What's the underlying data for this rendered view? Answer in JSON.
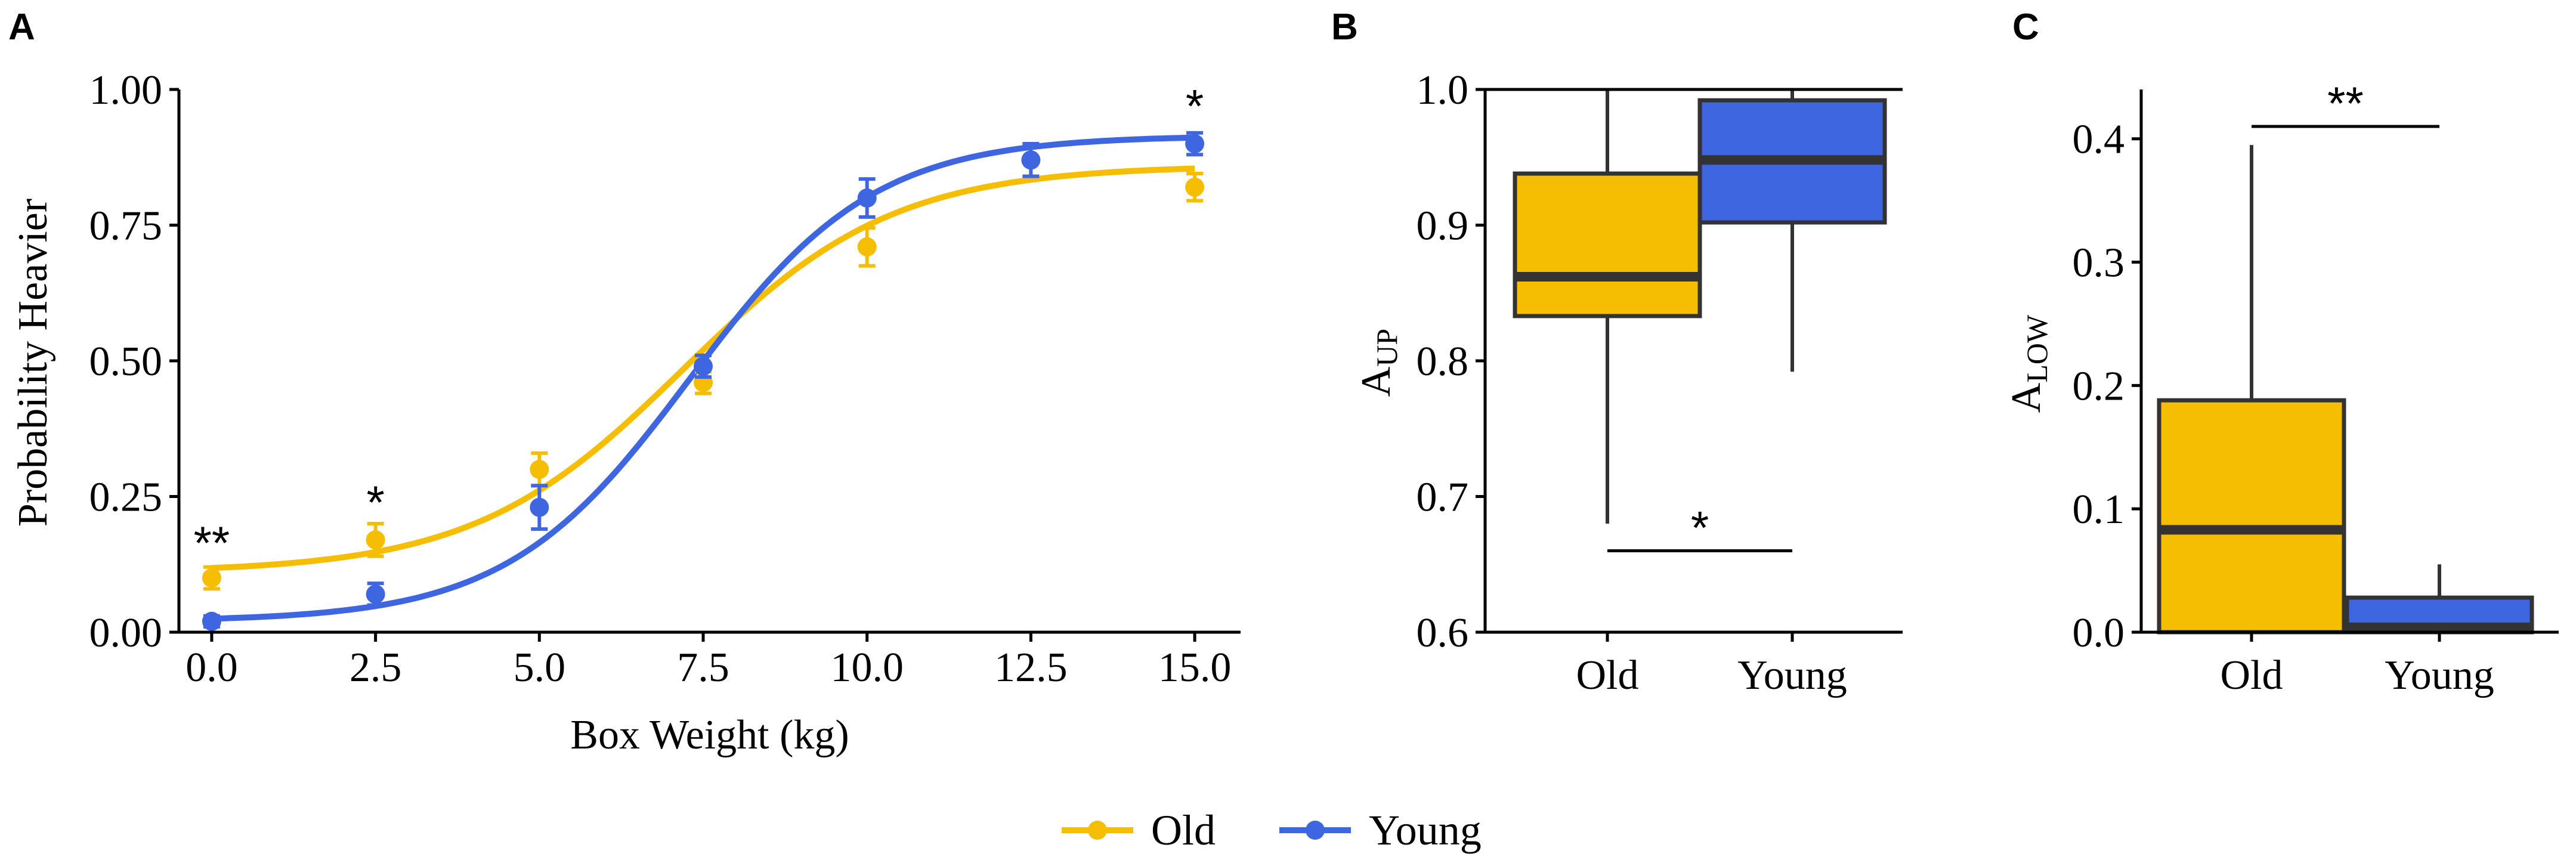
{
  "colors": {
    "old": "#F5BE02",
    "young": "#3F66E1",
    "axis": "#000000",
    "box_edge": "#333333"
  },
  "panel_labels": [
    "A",
    "B",
    "C"
  ],
  "legend": {
    "entries": [
      {
        "name": "Old",
        "color": "#F5BE02"
      },
      {
        "name": "Young",
        "color": "#3F66E1"
      }
    ]
  },
  "chart_data": [
    {
      "panel": "A",
      "type": "scatter",
      "xlabel": "Box Weight (kg)",
      "ylabel": "Probability Heavier",
      "xlim": [
        -0.5,
        15.7
      ],
      "ylim": [
        0,
        1.0
      ],
      "xticks": [
        "0.0",
        "2.5",
        "5.0",
        "7.5",
        "10.0",
        "12.5",
        "15.0"
      ],
      "xtick_values": [
        0,
        2.5,
        5,
        7.5,
        10,
        12.5,
        15
      ],
      "yticks": [
        "0.00",
        "0.25",
        "0.50",
        "0.75",
        "1.00"
      ],
      "ytick_values": [
        0,
        0.25,
        0.5,
        0.75,
        1.0
      ],
      "x": [
        0,
        2.5,
        5,
        7.5,
        10,
        12.5,
        15
      ],
      "series": [
        {
          "name": "Old",
          "values": [
            0.1,
            0.17,
            0.3,
            0.46,
            0.71,
            0.87,
            0.82
          ],
          "err": [
            0.02,
            0.03,
            0.03,
            0.02,
            0.035,
            0.03,
            0.025
          ],
          "fit": {
            "low": 0.11,
            "high": 0.86,
            "mid": 7.2,
            "scale": 1.6
          }
        },
        {
          "name": "Young",
          "values": [
            0.02,
            0.07,
            0.23,
            0.49,
            0.8,
            0.87,
            0.9
          ],
          "err": [
            0.01,
            0.02,
            0.04,
            0.02,
            0.035,
            0.03,
            0.02
          ],
          "fit": {
            "low": 0.02,
            "high": 0.915,
            "mid": 7.3,
            "scale": 1.4
          }
        }
      ],
      "annotations": [
        {
          "text": "**",
          "x": 0,
          "y": 0.135
        },
        {
          "text": "*",
          "x": 2.5,
          "y": 0.21
        },
        {
          "text": "*",
          "x": 15,
          "y": 0.94
        }
      ]
    },
    {
      "panel": "B",
      "type": "box",
      "ylabel_main": "A",
      "ylabel_sub": "UP",
      "categories": [
        "Old",
        "Young"
      ],
      "ylim": [
        0.6,
        1.0
      ],
      "yticks": [
        "0.6",
        "0.7",
        "0.8",
        "0.9",
        "1.0"
      ],
      "ytick_values": [
        0.6,
        0.7,
        0.8,
        0.9,
        1.0
      ],
      "boxes": [
        {
          "name": "Old",
          "min": 0.68,
          "q1": 0.833,
          "median": 0.862,
          "q3": 0.938,
          "max": 1.0
        },
        {
          "name": "Young",
          "min": 0.792,
          "q1": 0.902,
          "median": 0.948,
          "q3": 0.992,
          "max": 1.0
        }
      ],
      "significance": {
        "text": "*",
        "y": 0.66
      }
    },
    {
      "panel": "C",
      "type": "box",
      "ylabel_main": "A",
      "ylabel_sub": "LOW",
      "categories": [
        "Old",
        "Young"
      ],
      "ylim": [
        0,
        0.44
      ],
      "yticks": [
        "0.0",
        "0.1",
        "0.2",
        "0.3",
        "0.4"
      ],
      "ytick_values": [
        0,
        0.1,
        0.2,
        0.3,
        0.4
      ],
      "boxes": [
        {
          "name": "Old",
          "min": 0.0,
          "q1": 0.0,
          "median": 0.083,
          "q3": 0.188,
          "max": 0.395
        },
        {
          "name": "Young",
          "min": 0.0,
          "q1": 0.0,
          "median": 0.004,
          "q3": 0.028,
          "max": 0.055
        }
      ],
      "significance": {
        "text": "**",
        "y": 0.41
      }
    }
  ]
}
